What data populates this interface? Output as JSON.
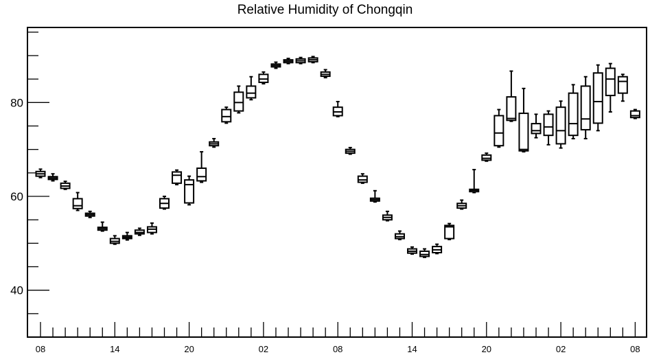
{
  "chart_data": {
    "type": "boxplot",
    "title": "Relative Humidity of Chongqin",
    "xlabel": "",
    "ylabel": "",
    "ylim": [
      30,
      96
    ],
    "y_ticks": [
      40,
      60,
      80
    ],
    "x_tick_labels": [
      "08",
      "14",
      "20",
      "02",
      "08",
      "14",
      "20",
      "02",
      "08"
    ],
    "grid": false,
    "boxes": [
      {
        "x": 0,
        "low": 64.0,
        "q1": 64.3,
        "median": 64.8,
        "q3": 65.3,
        "high": 65.8
      },
      {
        "x": 1,
        "low": 63.3,
        "q1": 63.6,
        "median": 63.9,
        "q3": 64.2,
        "high": 64.8
      },
      {
        "x": 2,
        "low": 61.5,
        "q1": 61.7,
        "median": 62.2,
        "q3": 62.8,
        "high": 63.2
      },
      {
        "x": 3,
        "low": 57.0,
        "q1": 57.4,
        "median": 58.0,
        "q3": 59.5,
        "high": 60.8
      },
      {
        "x": 4,
        "low": 55.5,
        "q1": 55.8,
        "median": 56.1,
        "q3": 56.4,
        "high": 56.8
      },
      {
        "x": 5,
        "low": 52.6,
        "q1": 52.8,
        "median": 53.1,
        "q3": 53.4,
        "high": 54.5
      },
      {
        "x": 6,
        "low": 49.8,
        "q1": 50.0,
        "median": 50.4,
        "q3": 51.0,
        "high": 51.6
      },
      {
        "x": 7,
        "low": 50.7,
        "q1": 51.0,
        "median": 51.3,
        "q3": 51.6,
        "high": 52.3
      },
      {
        "x": 8,
        "low": 51.7,
        "q1": 52.0,
        "median": 52.3,
        "q3": 52.8,
        "high": 53.2
      },
      {
        "x": 9,
        "low": 52.0,
        "q1": 52.3,
        "median": 53.0,
        "q3": 53.5,
        "high": 54.3
      },
      {
        "x": 10,
        "low": 57.3,
        "q1": 57.5,
        "median": 58.5,
        "q3": 59.5,
        "high": 60.0
      },
      {
        "x": 11,
        "low": 62.5,
        "q1": 62.8,
        "median": 64.5,
        "q3": 65.2,
        "high": 65.6
      },
      {
        "x": 12,
        "low": 58.2,
        "q1": 58.6,
        "median": 62.5,
        "q3": 63.5,
        "high": 64.3
      },
      {
        "x": 13,
        "low": 63.0,
        "q1": 63.3,
        "median": 64.2,
        "q3": 66.0,
        "high": 69.5
      },
      {
        "x": 14,
        "low": 70.5,
        "q1": 70.8,
        "median": 71.2,
        "q3": 71.6,
        "high": 72.3
      },
      {
        "x": 15,
        "low": 75.6,
        "q1": 75.9,
        "median": 77.0,
        "q3": 78.5,
        "high": 79.0
      },
      {
        "x": 16,
        "low": 77.8,
        "q1": 78.2,
        "median": 80.0,
        "q3": 82.2,
        "high": 83.5
      },
      {
        "x": 17,
        "low": 80.6,
        "q1": 81.0,
        "median": 82.0,
        "q3": 83.5,
        "high": 85.5
      },
      {
        "x": 18,
        "low": 84.0,
        "q1": 84.3,
        "median": 85.0,
        "q3": 86.0,
        "high": 86.5
      },
      {
        "x": 19,
        "low": 87.3,
        "q1": 87.6,
        "median": 87.9,
        "q3": 88.2,
        "high": 88.6
      },
      {
        "x": 20,
        "low": 88.3,
        "q1": 88.5,
        "median": 88.8,
        "q3": 89.1,
        "high": 89.4
      },
      {
        "x": 21,
        "low": 88.3,
        "q1": 88.5,
        "median": 88.9,
        "q3": 89.3,
        "high": 89.6
      },
      {
        "x": 22,
        "low": 88.5,
        "q1": 88.7,
        "median": 89.1,
        "q3": 89.5,
        "high": 89.8
      },
      {
        "x": 23,
        "low": 85.3,
        "q1": 85.6,
        "median": 86.0,
        "q3": 86.5,
        "high": 87.0
      },
      {
        "x": 24,
        "low": 77.0,
        "q1": 77.2,
        "median": 78.0,
        "q3": 79.0,
        "high": 80.2
      },
      {
        "x": 25,
        "low": 69.0,
        "q1": 69.2,
        "median": 69.6,
        "q3": 70.0,
        "high": 70.4
      },
      {
        "x": 26,
        "low": 62.8,
        "q1": 63.0,
        "median": 63.5,
        "q3": 64.3,
        "high": 64.8
      },
      {
        "x": 27,
        "low": 58.8,
        "q1": 59.0,
        "median": 59.3,
        "q3": 59.6,
        "high": 61.2
      },
      {
        "x": 28,
        "low": 54.8,
        "q1": 55.0,
        "median": 55.5,
        "q3": 56.0,
        "high": 56.8
      },
      {
        "x": 29,
        "low": 50.8,
        "q1": 51.0,
        "median": 51.4,
        "q3": 52.0,
        "high": 52.6
      },
      {
        "x": 30,
        "low": 47.7,
        "q1": 47.9,
        "median": 48.3,
        "q3": 48.8,
        "high": 49.2
      },
      {
        "x": 31,
        "low": 47.0,
        "q1": 47.2,
        "median": 47.6,
        "q3": 48.3,
        "high": 48.8
      },
      {
        "x": 32,
        "low": 47.8,
        "q1": 48.0,
        "median": 48.6,
        "q3": 49.3,
        "high": 49.8
      },
      {
        "x": 33,
        "low": 50.8,
        "q1": 51.0,
        "median": 53.5,
        "q3": 53.8,
        "high": 54.2
      },
      {
        "x": 34,
        "low": 57.3,
        "q1": 57.5,
        "median": 58.0,
        "q3": 58.5,
        "high": 59.2
      },
      {
        "x": 35,
        "low": 60.8,
        "q1": 61.0,
        "median": 61.3,
        "q3": 61.5,
        "high": 65.7
      },
      {
        "x": 36,
        "low": 67.5,
        "q1": 67.7,
        "median": 68.1,
        "q3": 68.8,
        "high": 69.2
      },
      {
        "x": 37,
        "low": 70.5,
        "q1": 70.8,
        "median": 73.5,
        "q3": 77.2,
        "high": 78.5
      },
      {
        "x": 38,
        "low": 76.0,
        "q1": 76.2,
        "median": 76.6,
        "q3": 81.2,
        "high": 86.7
      },
      {
        "x": 39,
        "low": 69.5,
        "q1": 69.7,
        "median": 70.0,
        "q3": 77.7,
        "high": 83.0
      },
      {
        "x": 40,
        "low": 72.5,
        "q1": 73.4,
        "median": 74.0,
        "q3": 75.5,
        "high": 77.5
      },
      {
        "x": 41,
        "low": 71.0,
        "q1": 73.0,
        "median": 74.8,
        "q3": 77.5,
        "high": 78.2
      },
      {
        "x": 42,
        "low": 70.3,
        "q1": 71.2,
        "median": 74.0,
        "q3": 79.0,
        "high": 80.3
      },
      {
        "x": 43,
        "low": 72.3,
        "q1": 73.0,
        "median": 75.5,
        "q3": 82.0,
        "high": 83.8
      },
      {
        "x": 44,
        "low": 72.3,
        "q1": 74.2,
        "median": 76.5,
        "q3": 83.5,
        "high": 85.5
      },
      {
        "x": 45,
        "low": 74.0,
        "q1": 75.6,
        "median": 80.2,
        "q3": 86.3,
        "high": 88.0
      },
      {
        "x": 46,
        "low": 78.0,
        "q1": 81.5,
        "median": 85.0,
        "q3": 87.3,
        "high": 88.3
      },
      {
        "x": 47,
        "low": 80.3,
        "q1": 82.0,
        "median": 84.5,
        "q3": 85.5,
        "high": 86.0
      },
      {
        "x": 48,
        "low": 76.6,
        "q1": 76.8,
        "median": 77.2,
        "q3": 78.2,
        "high": 78.5
      }
    ]
  }
}
